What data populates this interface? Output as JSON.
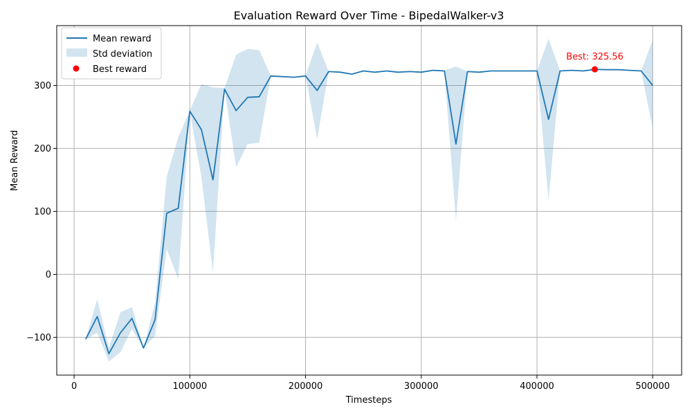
{
  "chart_data": {
    "type": "line",
    "title": "Evaluation Reward Over Time - BipedalWalker-v3",
    "xlabel": "Timesteps",
    "ylabel": "Mean Reward",
    "xlim": [
      -15000,
      525000
    ],
    "ylim": [
      -160,
      395
    ],
    "xticks": [
      0,
      100000,
      200000,
      300000,
      400000,
      500000
    ],
    "yticks": [
      -100,
      0,
      100,
      200,
      300
    ],
    "grid": true,
    "legend_position": "upper-left",
    "legend": [
      "Mean reward",
      "Std deviation",
      "Best reward"
    ],
    "colors": {
      "line": "#1f77b4",
      "band": "#1f77b4",
      "best": "#ff0000"
    },
    "series": [
      {
        "name": "Mean reward",
        "x": [
          10000,
          20000,
          30000,
          40000,
          50000,
          60000,
          70000,
          80000,
          90000,
          100000,
          110000,
          120000,
          130000,
          140000,
          150000,
          160000,
          170000,
          180000,
          190000,
          200000,
          210000,
          220000,
          230000,
          240000,
          250000,
          260000,
          270000,
          280000,
          290000,
          300000,
          310000,
          320000,
          330000,
          340000,
          350000,
          360000,
          370000,
          380000,
          390000,
          400000,
          410000,
          420000,
          430000,
          440000,
          450000,
          460000,
          470000,
          480000,
          490000,
          500000
        ],
        "y": [
          -103,
          -67,
          -126,
          -93,
          -70,
          -117,
          -72,
          97,
          105,
          259,
          230,
          150,
          294,
          260,
          281,
          282,
          315,
          314,
          313,
          315,
          292,
          322,
          321,
          318,
          323,
          321,
          323,
          321,
          322,
          321,
          324,
          323,
          207,
          322,
          321,
          323,
          323,
          323,
          323,
          323,
          246,
          323,
          324,
          323,
          325.56,
          325,
          325,
          324,
          323,
          300
        ]
      },
      {
        "name": "Std deviation",
        "x": [
          10000,
          20000,
          30000,
          40000,
          50000,
          60000,
          70000,
          80000,
          90000,
          100000,
          110000,
          120000,
          130000,
          140000,
          150000,
          160000,
          170000,
          180000,
          190000,
          200000,
          210000,
          220000,
          230000,
          240000,
          250000,
          260000,
          270000,
          280000,
          290000,
          300000,
          310000,
          320000,
          330000,
          340000,
          350000,
          360000,
          370000,
          380000,
          390000,
          400000,
          410000,
          420000,
          430000,
          440000,
          450000,
          460000,
          470000,
          480000,
          490000,
          500000
        ],
        "lower": [
          -103,
          -93,
          -138,
          -124,
          -87,
          -117,
          -98,
          40,
          -8,
          258,
          155,
          3,
          294,
          170,
          207,
          209,
          315,
          314,
          313,
          315,
          215,
          322,
          321,
          318,
          323,
          321,
          323,
          321,
          322,
          321,
          324,
          322,
          85,
          322,
          321,
          323,
          323,
          323,
          323,
          323,
          117,
          323,
          324,
          323,
          325.56,
          325,
          325,
          324,
          323,
          232
        ],
        "upper": [
          -103,
          -39,
          -117,
          -60,
          -52,
          -117,
          -45,
          155,
          218,
          260,
          302,
          297,
          296,
          349,
          358,
          356,
          315,
          314,
          313,
          315,
          368,
          322,
          321,
          318,
          323,
          321,
          323,
          321,
          322,
          321,
          324,
          324,
          330,
          322,
          321,
          323,
          323,
          323,
          323,
          323,
          374,
          323,
          324,
          323,
          325.56,
          325,
          325,
          324,
          323,
          372
        ]
      }
    ],
    "best": {
      "name": "Best reward",
      "x": 450000,
      "y": 325.56,
      "label": "Best: 325.56"
    }
  }
}
